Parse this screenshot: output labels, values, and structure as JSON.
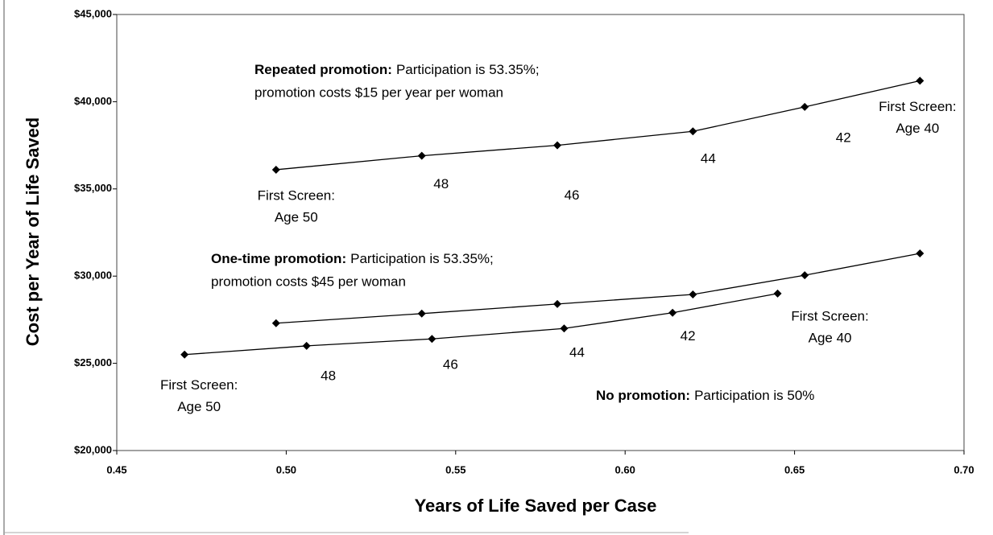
{
  "chart_data": {
    "type": "line",
    "x_label": "Years of Life Saved per Case",
    "y_label": "Cost per Year of Life Saved",
    "xlim": [
      0.45,
      0.7
    ],
    "ylim": [
      20000,
      45000
    ],
    "xticks": [
      0.45,
      {
        "value": 0.5,
        "label": "0.50"
      },
      0.55,
      {
        "value": 0.6,
        "label": "0.60"
      },
      0.65,
      {
        "value": 0.7,
        "label": "0.70"
      }
    ],
    "yticks": [
      {
        "value": 20000,
        "label": "$20,000"
      },
      {
        "value": 25000,
        "label": "$25,000"
      },
      {
        "value": 30000,
        "label": "$30,000"
      },
      {
        "value": 35000,
        "label": "$35,000"
      },
      {
        "value": 40000,
        "label": "$40,000"
      },
      {
        "value": 45000,
        "label": "$45,000"
      }
    ],
    "series": [
      {
        "name": "Repeated promotion:",
        "note": "Participation is 53.35%;",
        "note2": "promotion costs $15 per year per woman",
        "color": "#000000",
        "x": [
          0.497,
          0.54,
          0.58,
          0.62,
          0.653,
          0.687
        ],
        "values": [
          36100,
          36900,
          37500,
          38300,
          39700,
          41200
        ],
        "point_labels": [
          [
            "First Screen:",
            "Age 50"
          ],
          [
            "48"
          ],
          [
            "46"
          ],
          [
            "44"
          ],
          [
            "42"
          ],
          [
            "First Screen:",
            "Age 40"
          ]
        ]
      },
      {
        "name": "One-time promotion:",
        "note": "Participation is 53.35%;",
        "note2": "promotion costs $45 per woman",
        "color": "#000000",
        "x": [
          0.497,
          0.54,
          0.58,
          0.62,
          0.653,
          0.687
        ],
        "values": [
          27300,
          27850,
          28400,
          28950,
          30050,
          31300
        ]
      },
      {
        "name": "No promotion:",
        "note": "Participation is 50%",
        "color": "#000000",
        "x": [
          0.47,
          0.506,
          0.543,
          0.582,
          0.614,
          0.645
        ],
        "values": [
          25500,
          26000,
          26400,
          27000,
          27900,
          29000
        ],
        "point_labels": [
          [
            "First Screen:",
            "Age 50"
          ],
          [
            "48"
          ],
          [
            "46"
          ],
          [
            "44"
          ],
          [
            "42"
          ],
          [
            "First Screen:",
            "Age 40"
          ]
        ]
      }
    ]
  }
}
